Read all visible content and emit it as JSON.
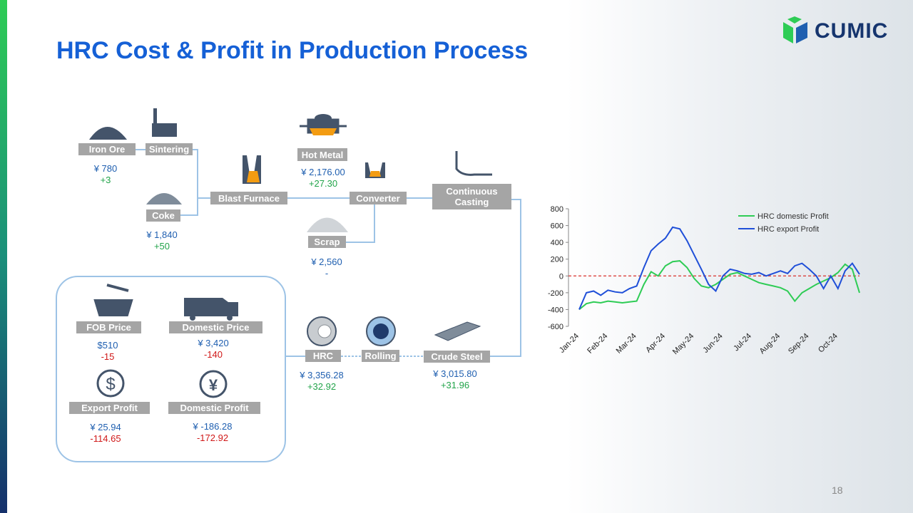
{
  "title": "HRC Cost & Profit in Production Process",
  "logo": "CUMIC",
  "page_number": "18",
  "process": [
    {
      "label": "Iron Ore",
      "price": "¥ 780",
      "change": "+3"
    },
    {
      "label": "Sintering"
    },
    {
      "label": "Coke",
      "price": "¥ 1,840",
      "change": "+50"
    },
    {
      "label": "Blast Furnace"
    },
    {
      "label": "Hot Metal",
      "price": "¥ 2,176.00",
      "change": "+27.30"
    },
    {
      "label": "Converter"
    },
    {
      "label": "Scrap",
      "price": "¥ 2,560",
      "change": "-"
    },
    {
      "label": "Continuous Casting"
    },
    {
      "label": "Crude Steel",
      "price": "¥ 3,015.80",
      "change": "+31.96"
    },
    {
      "label": "Rolling"
    },
    {
      "label": "HRC",
      "price": "¥ 3,356.28",
      "change": "+32.92"
    }
  ],
  "market": [
    {
      "label": "FOB Price",
      "price": "$510",
      "change": "-15"
    },
    {
      "label": "Domestic Price",
      "price": "¥ 3,420",
      "change": "-140"
    },
    {
      "label": "Export Profit",
      "price": "¥ 25.94",
      "change": "-114.65"
    },
    {
      "label": "Domestic Profit",
      "price": "¥ -186.28",
      "change": "-172.92"
    }
  ],
  "chart_data": {
    "type": "line",
    "categories": [
      "Jan-24",
      null,
      null,
      null,
      "Feb-24",
      null,
      null,
      null,
      "Mar-24",
      null,
      null,
      null,
      "Apr-24",
      null,
      null,
      null,
      "May-24",
      null,
      null,
      null,
      "Jun-24",
      null,
      null,
      null,
      "Jul-24",
      null,
      null,
      null,
      "Aug-24",
      null,
      null,
      null,
      "Sep-24",
      null,
      null,
      null,
      "Oct-24",
      null,
      null,
      null
    ],
    "series": [
      {
        "name": "HRC domestic Profit",
        "color": "#2ecc55",
        "values": [
          -400,
          -330,
          -310,
          -320,
          -300,
          -310,
          -320,
          -310,
          -300,
          -100,
          50,
          0,
          120,
          170,
          180,
          100,
          -30,
          -120,
          -140,
          -100,
          -40,
          20,
          40,
          0,
          -40,
          -80,
          -100,
          -120,
          -140,
          -180,
          -300,
          -200,
          -150,
          -100,
          -60,
          -20,
          40,
          140,
          80,
          -200
        ]
      },
      {
        "name": "HRC export Profit",
        "color": "#1f4fd8",
        "values": [
          -400,
          -200,
          -180,
          -230,
          -170,
          -190,
          -200,
          -150,
          -120,
          100,
          300,
          380,
          450,
          580,
          560,
          420,
          250,
          80,
          -100,
          -180,
          0,
          80,
          60,
          30,
          20,
          40,
          0,
          30,
          60,
          30,
          120,
          150,
          80,
          0,
          -150,
          0,
          -150,
          60,
          150,
          20
        ]
      }
    ],
    "ylim": [
      -600,
      800
    ],
    "yticks": [
      -600,
      -400,
      -200,
      0,
      200,
      400,
      600,
      800
    ],
    "hline": 0,
    "hline_color": "#d9302c"
  }
}
